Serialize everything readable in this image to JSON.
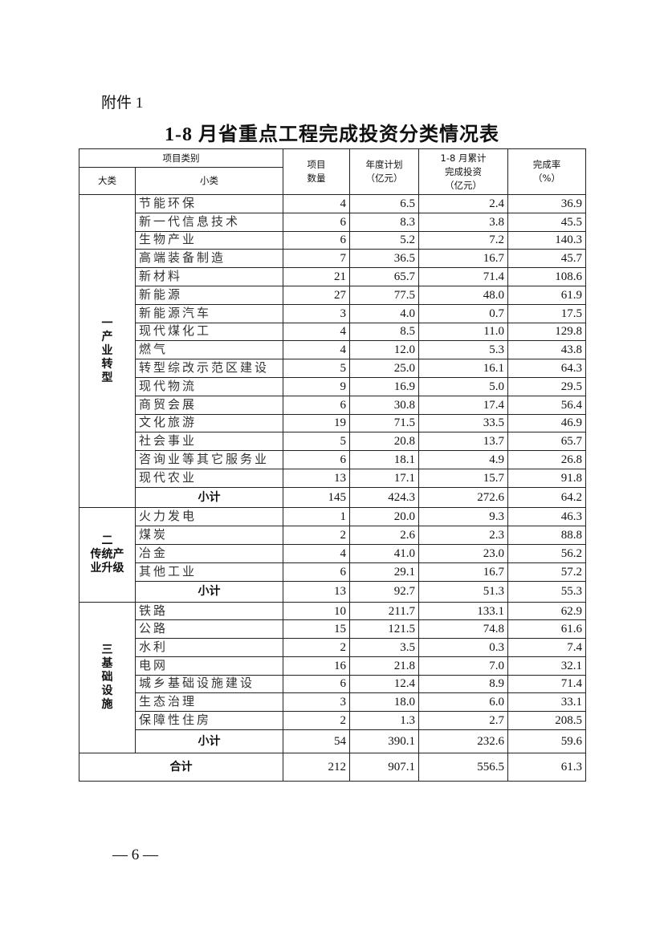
{
  "attachment_label": "附件 1",
  "title": "1-8 月省重点工程完成投资分类情况表",
  "header": {
    "category": "项目类别",
    "major": "大类",
    "minor": "小类",
    "count": "项目数量",
    "plan": "年度计划（亿元）",
    "done_l1": "1-8 月累计",
    "done_l2": "完成投资",
    "done_l3": "（亿元）",
    "rate": "完成率（%）"
  },
  "groups": [
    {
      "num": "一",
      "name": "产业转型",
      "layout": "vertical",
      "rows": [
        [
          "节能环保",
          "4",
          "6.5",
          "2.4",
          "36.9"
        ],
        [
          "新一代信息技术",
          "6",
          "8.3",
          "3.8",
          "45.5"
        ],
        [
          "生物产业",
          "6",
          "5.2",
          "7.2",
          "140.3"
        ],
        [
          "高端装备制造",
          "7",
          "36.5",
          "16.7",
          "45.7"
        ],
        [
          "新材料",
          "21",
          "65.7",
          "71.4",
          "108.6"
        ],
        [
          "新能源",
          "27",
          "77.5",
          "48.0",
          "61.9"
        ],
        [
          "新能源汽车",
          "3",
          "4.0",
          "0.7",
          "17.5"
        ],
        [
          "现代煤化工",
          "4",
          "8.5",
          "11.0",
          "129.8"
        ],
        [
          "燃气",
          "4",
          "12.0",
          "5.3",
          "43.8"
        ],
        [
          "转型综改示范区建设",
          "5",
          "25.0",
          "16.1",
          "64.3"
        ],
        [
          "现代物流",
          "9",
          "16.9",
          "5.0",
          "29.5"
        ],
        [
          "商贸会展",
          "6",
          "30.8",
          "17.4",
          "56.4"
        ],
        [
          "文化旅游",
          "19",
          "71.5",
          "33.5",
          "46.9"
        ],
        [
          "社会事业",
          "5",
          "20.8",
          "13.7",
          "65.7"
        ],
        [
          "咨询业等其它服务业",
          "6",
          "18.1",
          "4.9",
          "26.8"
        ],
        [
          "现代农业",
          "13",
          "17.1",
          "15.7",
          "91.8"
        ]
      ],
      "subtotal": [
        "小计",
        "145",
        "424.3",
        "272.6",
        "64.2"
      ]
    },
    {
      "num": "二",
      "name": "传统产业升级",
      "layout": "block",
      "rows": [
        [
          "火力发电",
          "1",
          "20.0",
          "9.3",
          "46.3"
        ],
        [
          "煤炭",
          "2",
          "2.6",
          "2.3",
          "88.8"
        ],
        [
          "冶金",
          "4",
          "41.0",
          "23.0",
          "56.2"
        ],
        [
          "其他工业",
          "6",
          "29.1",
          "16.7",
          "57.2"
        ]
      ],
      "subtotal": [
        "小计",
        "13",
        "92.7",
        "51.3",
        "55.3"
      ]
    },
    {
      "num": "三",
      "name": "基础设施",
      "layout": "vertical",
      "rows": [
        [
          "铁路",
          "10",
          "211.7",
          "133.1",
          "62.9"
        ],
        [
          "公路",
          "15",
          "121.5",
          "74.8",
          "61.6"
        ],
        [
          "水利",
          "2",
          "3.5",
          "0.3",
          "7.4"
        ],
        [
          "电网",
          "16",
          "21.8",
          "7.0",
          "32.1"
        ],
        [
          "城乡基础设施建设",
          "6",
          "12.4",
          "8.9",
          "71.4"
        ],
        [
          "生态治理",
          "3",
          "18.0",
          "6.0",
          "33.1"
        ],
        [
          "保障性住房",
          "2",
          "1.3",
          "2.7",
          "208.5"
        ]
      ],
      "subtotal": [
        "小计",
        "54",
        "390.1",
        "232.6",
        "59.6"
      ]
    }
  ],
  "total": [
    "合计",
    "212",
    "907.1",
    "556.5",
    "61.3"
  ],
  "page_number": "— 6 —"
}
